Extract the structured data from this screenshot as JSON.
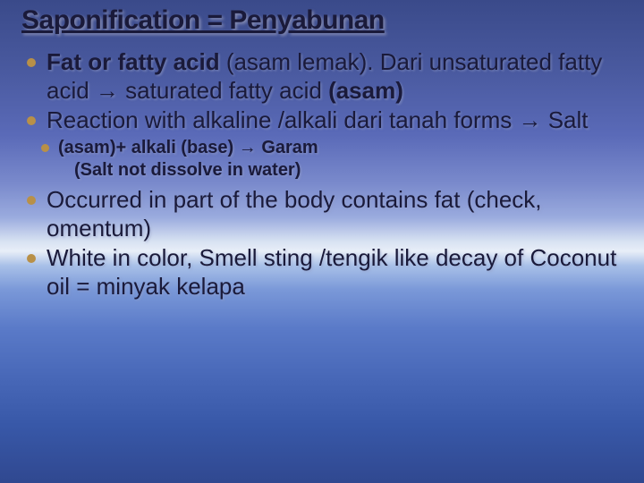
{
  "colors": {
    "text": "#1a1a3a",
    "bullet": "#b89048",
    "bg_top": "#3a4a8a",
    "bg_horizon_light": "#e8eef8",
    "bg_bottom": "#304890",
    "shadow": "rgba(150,160,200,0.5)"
  },
  "typography": {
    "title_fontsize": 30,
    "body_fontsize": 26,
    "small_fontsize": 20,
    "font_family": "Verdana"
  },
  "slide": {
    "title": "Saponification = Penyabunan",
    "bullets": [
      {
        "parts": [
          {
            "text": "Fat  or fatty acid",
            "bold": true
          },
          {
            "text": " (asam lemak). Dari unsaturated fatty acid "
          },
          {
            "text": "→",
            "arrow": true
          },
          {
            "text": " saturated fatty acid "
          },
          {
            "text": "(asam)",
            "bold": true
          }
        ],
        "size": "normal"
      },
      {
        "parts": [
          {
            "text": "Reaction with alkaline /alkali dari tanah forms "
          },
          {
            "text": "→",
            "arrow": true
          },
          {
            "text": " Salt"
          }
        ],
        "size": "normal"
      },
      {
        "parts": [
          {
            "text": "(asam)+ alkali (base) ",
            "bold": true
          },
          {
            "text": "→",
            "arrow": true,
            "bold": true
          },
          {
            "text": " Garam",
            "bold": true
          }
        ],
        "sub": "(Salt not dissolve in water)",
        "size": "small"
      },
      {
        "parts": [
          {
            "text": "Occurred in part of the body contains fat (check, omentum)"
          }
        ],
        "size": "normal",
        "gap_top": true
      },
      {
        "parts": [
          {
            "text": "White in color, Smell sting /tengik like decay of Coconut oil = minyak kelapa"
          }
        ],
        "size": "normal"
      }
    ]
  }
}
